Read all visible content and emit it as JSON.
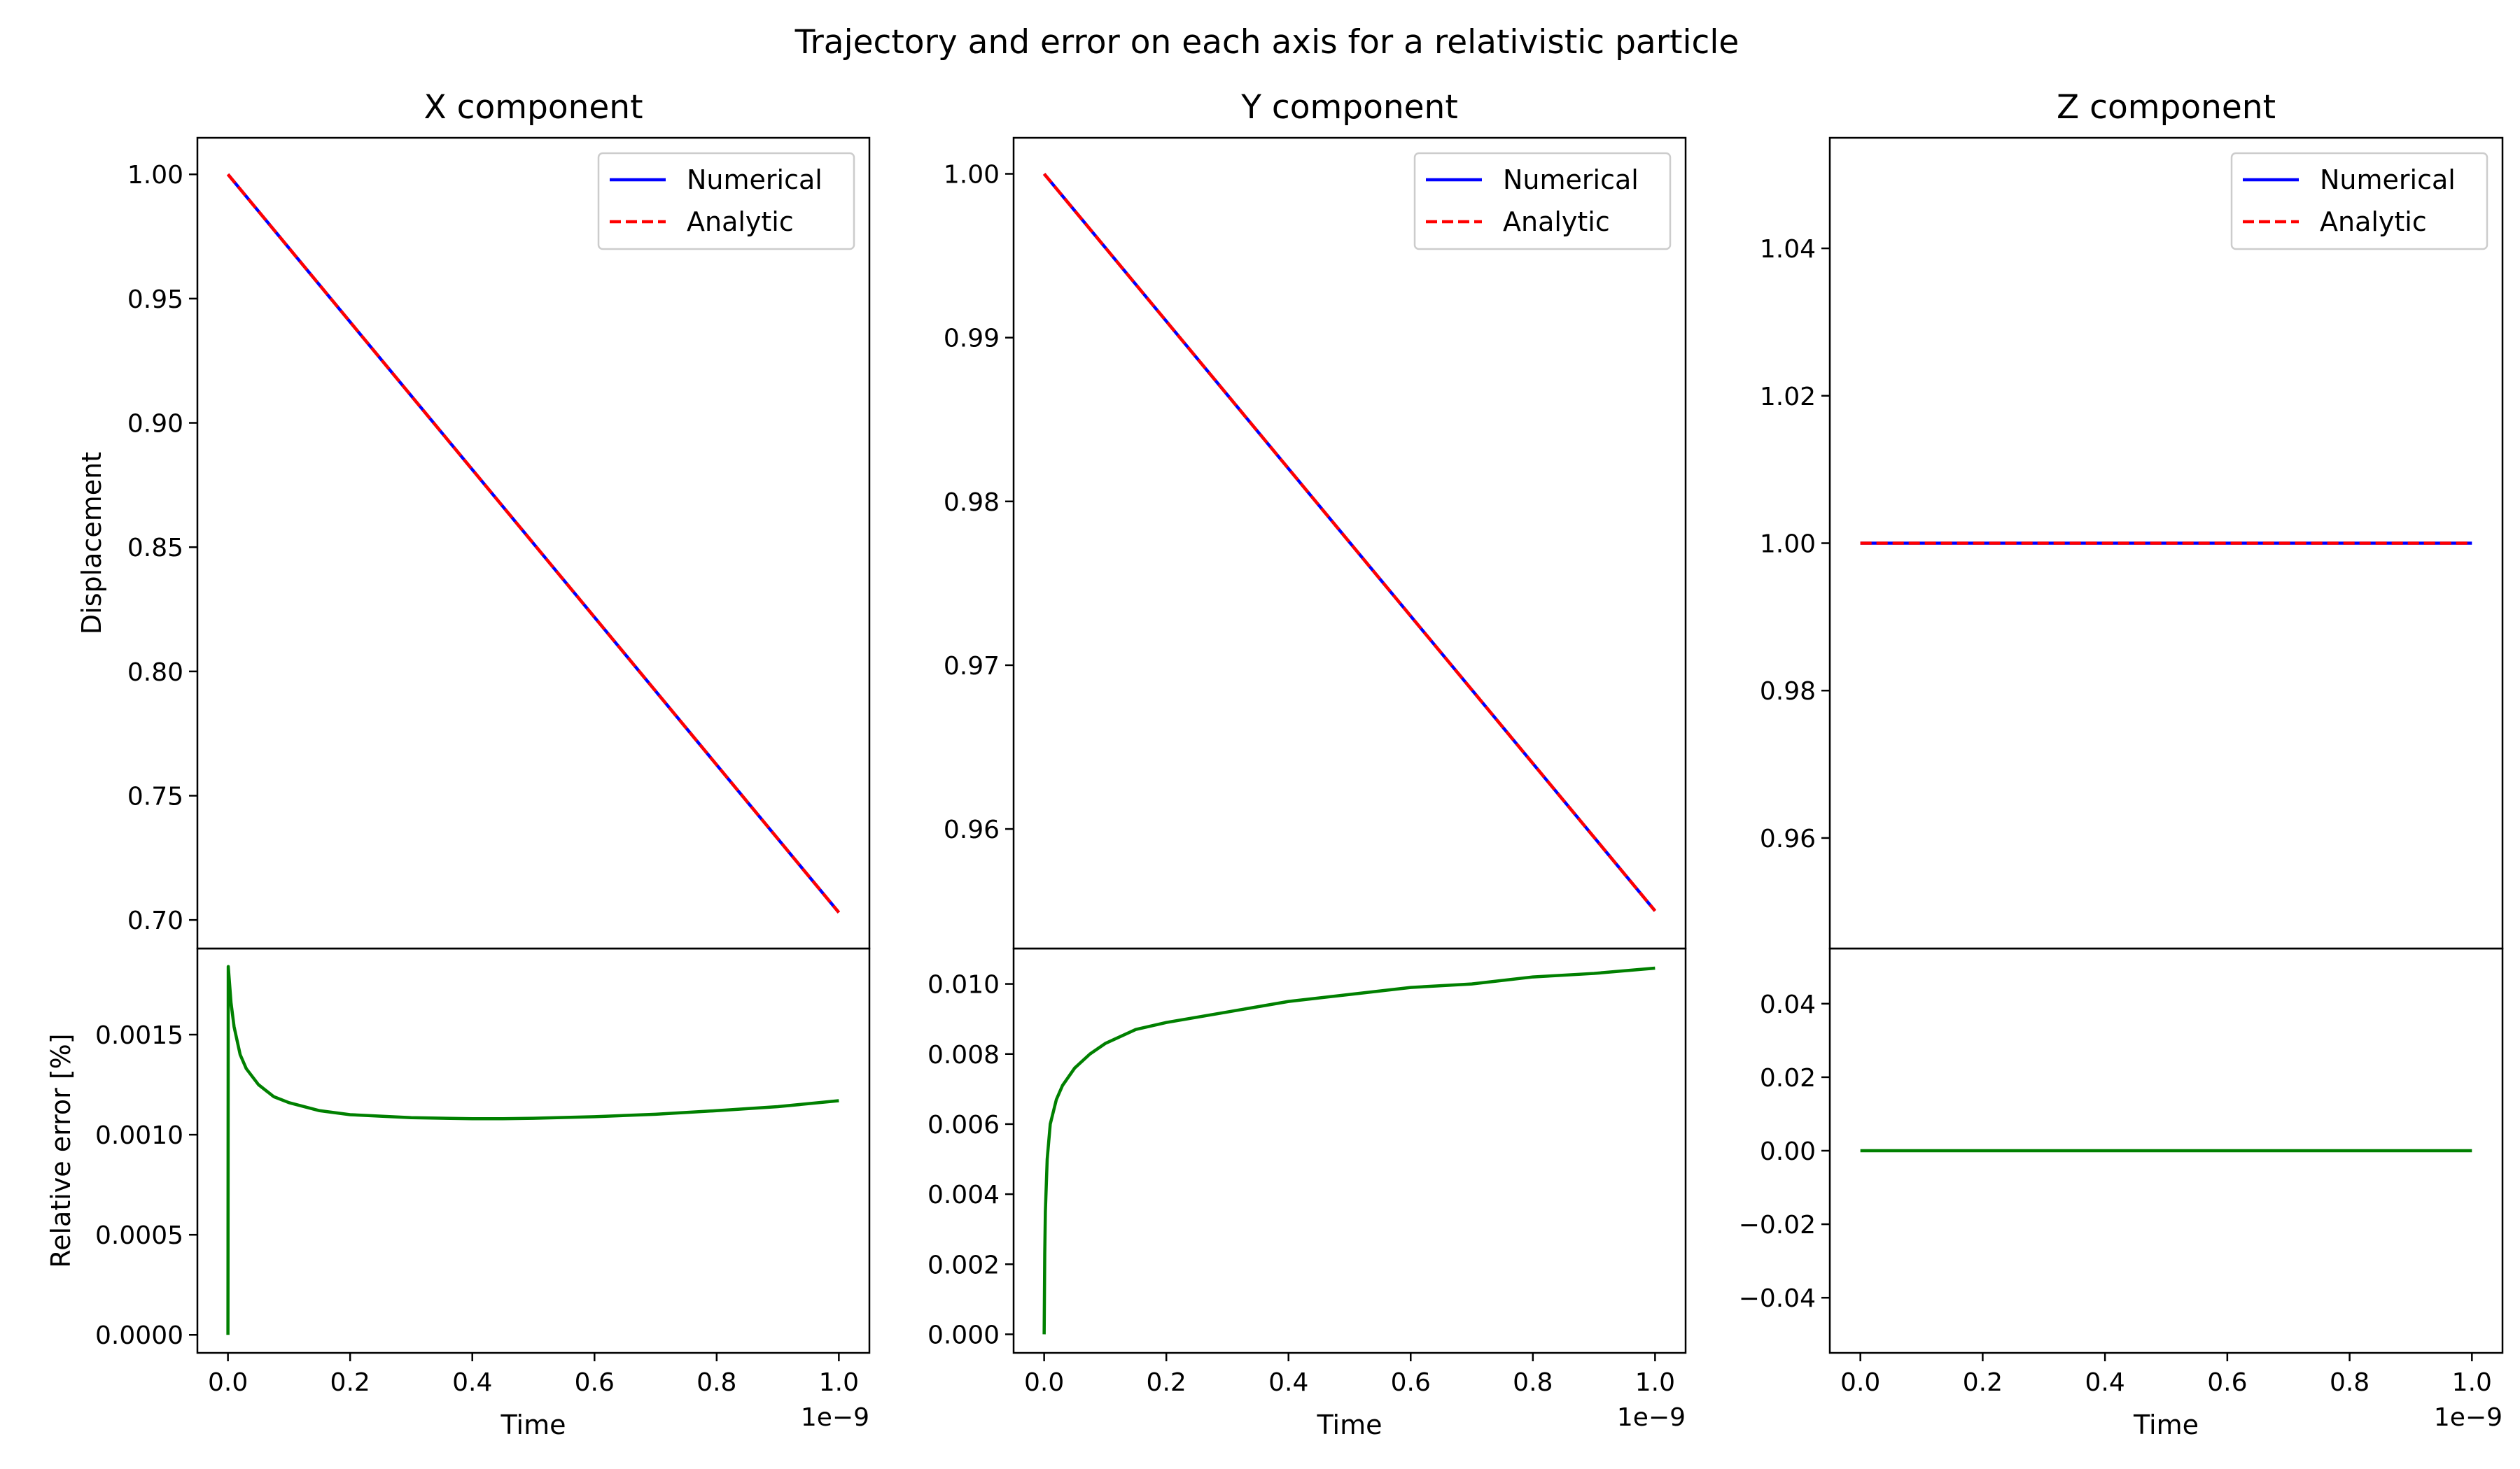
{
  "figure": {
    "title": "Trajectory and error on each axis for a relativistic particle"
  },
  "chart_data": [
    {
      "type": "line",
      "title": "X component",
      "xlabel": "",
      "ylabel": "Displacement",
      "xlim": [
        -5e-11,
        1.05e-09
      ],
      "ylim": [
        0.6885,
        1.0147
      ],
      "yticks": [
        0.7,
        0.75,
        0.8,
        0.85,
        0.9,
        0.95,
        1.0
      ],
      "ytick_labels": [
        "0.70",
        "0.75",
        "0.80",
        "0.85",
        "0.90",
        "0.95",
        "1.00"
      ],
      "legend": {
        "location": "top-right",
        "entries": [
          "Numerical",
          "Analytic"
        ]
      },
      "series": [
        {
          "name": "Numerical",
          "color": "#0000ff",
          "style": "solid",
          "x": [
            0,
            1e-09
          ],
          "y": [
            1.0,
            0.703
          ]
        },
        {
          "name": "Analytic",
          "color": "#ff0000",
          "style": "dashed",
          "x": [
            0,
            1e-09
          ],
          "y": [
            1.0,
            0.703
          ]
        }
      ]
    },
    {
      "type": "line",
      "title": "",
      "xlabel": "Time",
      "ylabel": "Relative error [%]",
      "xlim": [
        -5e-11,
        1.05e-09
      ],
      "ylim": [
        -9e-05,
        0.00193
      ],
      "xticks": [
        0,
        2e-10,
        4e-10,
        6e-10,
        8e-10,
        1e-09
      ],
      "xtick_labels": [
        "0.0",
        "0.2",
        "0.4",
        "0.6",
        "0.8",
        "1.0"
      ],
      "x_offset_label": "1e−9",
      "yticks": [
        0.0,
        0.0005,
        0.001,
        0.0015
      ],
      "ytick_labels": [
        "0.0000",
        "0.0005",
        "0.0010",
        "0.0015"
      ],
      "series": [
        {
          "name": "",
          "color": "#008000",
          "x": [
            0,
            5e-13,
            1e-12,
            5e-12,
            1e-11,
            2e-11,
            3e-11,
            5e-11,
            7.5e-11,
            1e-10,
            1.5e-10,
            2e-10,
            3e-10,
            4e-10,
            4.5e-10,
            5e-10,
            6e-10,
            7e-10,
            8e-10,
            9e-10,
            1e-09
          ],
          "y": [
            0.0,
            0.00184,
            0.00182,
            0.00166,
            0.00154,
            0.0014,
            0.00133,
            0.00125,
            0.00119,
            0.00116,
            0.00112,
            0.0011,
            0.001085,
            0.00108,
            0.00108,
            0.001082,
            0.00109,
            0.001102,
            0.00112,
            0.00114,
            0.00117
          ]
        }
      ]
    },
    {
      "type": "line",
      "title": "Y component",
      "xlabel": "",
      "ylabel": "",
      "xlim": [
        -5e-11,
        1.05e-09
      ],
      "ylim": [
        0.9527,
        1.0022
      ],
      "yticks": [
        0.96,
        0.97,
        0.98,
        0.99,
        1.0
      ],
      "ytick_labels": [
        "0.96",
        "0.97",
        "0.98",
        "0.99",
        "1.00"
      ],
      "legend": {
        "location": "top-right",
        "entries": [
          "Numerical",
          "Analytic"
        ]
      },
      "series": [
        {
          "name": "Numerical",
          "color": "#0000ff",
          "style": "solid",
          "x": [
            0,
            1e-09
          ],
          "y": [
            1.0,
            0.955
          ]
        },
        {
          "name": "Analytic",
          "color": "#ff0000",
          "style": "dashed",
          "x": [
            0,
            1e-09
          ],
          "y": [
            1.0,
            0.955
          ]
        }
      ]
    },
    {
      "type": "line",
      "title": "",
      "xlabel": "Time",
      "ylabel": "",
      "xlim": [
        -5e-11,
        1.05e-09
      ],
      "ylim": [
        -0.00053,
        0.01101
      ],
      "xticks": [
        0,
        2e-10,
        4e-10,
        6e-10,
        8e-10,
        1e-09
      ],
      "xtick_labels": [
        "0.0",
        "0.2",
        "0.4",
        "0.6",
        "0.8",
        "1.0"
      ],
      "x_offset_label": "1e−9",
      "yticks": [
        0.0,
        0.002,
        0.004,
        0.006,
        0.008,
        0.01
      ],
      "ytick_labels": [
        "0.000",
        "0.002",
        "0.004",
        "0.006",
        "0.008",
        "0.010"
      ],
      "series": [
        {
          "name": "",
          "color": "#008000",
          "x": [
            0,
            1e-12,
            2e-12,
            5e-12,
            1e-11,
            2e-11,
            3e-11,
            5e-11,
            7.5e-11,
            1e-10,
            1.5e-10,
            2e-10,
            3e-10,
            4e-10,
            5e-10,
            6e-10,
            7e-10,
            8e-10,
            9e-10,
            1e-09
          ],
          "y": [
            0.0,
            0.0023,
            0.0035,
            0.005,
            0.006,
            0.0067,
            0.0071,
            0.0076,
            0.008,
            0.0083,
            0.0087,
            0.0089,
            0.0092,
            0.0095,
            0.0097,
            0.0099,
            0.01,
            0.0102,
            0.0103,
            0.01045
          ]
        }
      ]
    },
    {
      "type": "line",
      "title": "Z component",
      "xlabel": "",
      "ylabel": "",
      "xlim": [
        -5e-11,
        1.05e-09
      ],
      "ylim": [
        0.945,
        1.055
      ],
      "yticks": [
        0.96,
        0.98,
        1.0,
        1.02,
        1.04
      ],
      "ytick_labels": [
        "0.96",
        "0.98",
        "1.00",
        "1.02",
        "1.04"
      ],
      "legend": {
        "location": "top-right",
        "entries": [
          "Numerical",
          "Analytic"
        ]
      },
      "series": [
        {
          "name": "Numerical",
          "color": "#0000ff",
          "style": "solid",
          "x": [
            0,
            1e-09
          ],
          "y": [
            1.0,
            1.0
          ]
        },
        {
          "name": "Analytic",
          "color": "#ff0000",
          "style": "dashed",
          "x": [
            0,
            1e-09
          ],
          "y": [
            1.0,
            1.0
          ]
        }
      ]
    },
    {
      "type": "line",
      "title": "",
      "xlabel": "Time",
      "ylabel": "",
      "xlim": [
        -5e-11,
        1.05e-09
      ],
      "ylim": [
        -0.055,
        0.055
      ],
      "xticks": [
        0,
        2e-10,
        4e-10,
        6e-10,
        8e-10,
        1e-09
      ],
      "xtick_labels": [
        "0.0",
        "0.2",
        "0.4",
        "0.6",
        "0.8",
        "1.0"
      ],
      "x_offset_label": "1e−9",
      "yticks": [
        -0.04,
        -0.02,
        0.0,
        0.02,
        0.04
      ],
      "ytick_labels": [
        "−0.04",
        "−0.02",
        "0.00",
        "0.02",
        "0.04"
      ],
      "series": [
        {
          "name": "",
          "color": "#008000",
          "x": [
            0,
            1e-09
          ],
          "y": [
            0.0,
            0.0
          ]
        }
      ]
    }
  ]
}
